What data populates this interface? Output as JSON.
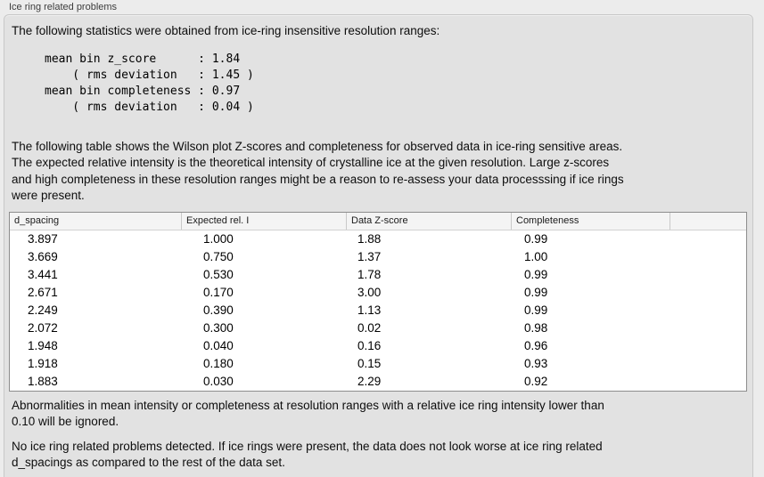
{
  "window": {
    "title": "Ice ring related problems"
  },
  "stats": {
    "intro": "The following statistics were obtained from ice-ring insensitive resolution ranges:",
    "block": "mean bin z_score      : 1.84\n    ( rms deviation   : 1.45 )\nmean bin completeness : 0.97\n    ( rms deviation   : 0.04 )",
    "mean_bin_z_score": "1.84",
    "z_score_rms_deviation": "1.45",
    "mean_bin_completeness": "0.97",
    "completeness_rms_deviation": "0.04"
  },
  "table_intro": "The following table shows the Wilson plot Z-scores and completeness for observed data in ice-ring sensitive areas.\nThe expected relative intensity is the theoretical intensity of crystalline ice at the given resolution. Large z-scores\nand high completeness in these resolution ranges might be a reason to re-assess your data processsing if ice rings\nwere present.",
  "table": {
    "headers": [
      "d_spacing",
      "Expected rel. I",
      "Data Z-score",
      "Completeness",
      ""
    ],
    "rows": [
      [
        "3.897",
        "1.000",
        "1.88",
        "0.99"
      ],
      [
        "3.669",
        "0.750",
        "1.37",
        "1.00"
      ],
      [
        "3.441",
        "0.530",
        "1.78",
        "0.99"
      ],
      [
        "2.671",
        "0.170",
        "3.00",
        "0.99"
      ],
      [
        "2.249",
        "0.390",
        "1.13",
        "0.99"
      ],
      [
        "2.072",
        "0.300",
        "0.02",
        "0.98"
      ],
      [
        "1.948",
        "0.040",
        "0.16",
        "0.96"
      ],
      [
        "1.918",
        "0.180",
        "0.15",
        "0.93"
      ],
      [
        "1.883",
        "0.030",
        "2.29",
        "0.92"
      ]
    ]
  },
  "note_ignore": "Abnormalities in mean intensity or completeness at resolution ranges with a relative ice ring intensity lower than\n0.10 will be ignored.",
  "conclusion": "No ice ring related problems detected. If ice rings were present, the data does not look worse at ice ring related\nd_spacings as compared to the rest of the data set.",
  "colors": {
    "page_background": "#ececec",
    "groupbox_background": "#e2e2e2",
    "groupbox_border": "#c8c8c8",
    "table_border": "#8d8d8d",
    "table_header_background": "#f4f4f4"
  }
}
